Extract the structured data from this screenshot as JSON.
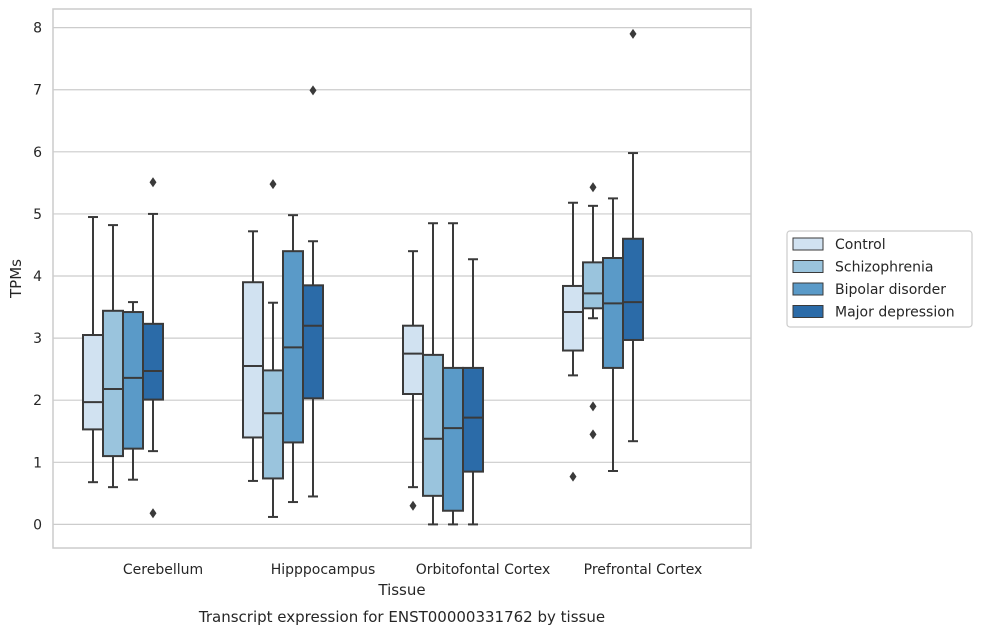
{
  "caption": "Transcript expression for ENST00000331762 by tissue",
  "chart_data": {
    "type": "box",
    "xlabel": "Tissue",
    "ylabel": "TPMs",
    "ylim": [
      -0.38,
      8.3
    ],
    "yticks": [
      0,
      1,
      2,
      3,
      4,
      5,
      6,
      7,
      8
    ],
    "grid": true,
    "legend_placement": "center-right",
    "categories": [
      "Cerebellum",
      "Hipppocampus",
      "Orbitofontal Cortex",
      "Prefrontal Cortex"
    ],
    "series": [
      {
        "name": "Control",
        "color": "#d1e2f1",
        "boxes": [
          {
            "whisker_low": 0.68,
            "q1": 1.53,
            "median": 1.97,
            "q3": 3.05,
            "whisker_high": 4.95,
            "outliers": []
          },
          {
            "whisker_low": 0.7,
            "q1": 1.4,
            "median": 2.55,
            "q3": 3.9,
            "whisker_high": 4.72,
            "outliers": []
          },
          {
            "whisker_low": 0.6,
            "q1": 2.1,
            "median": 2.75,
            "q3": 3.2,
            "whisker_high": 4.4,
            "outliers": [
              0.3
            ]
          },
          {
            "whisker_low": 2.4,
            "q1": 2.8,
            "median": 3.42,
            "q3": 3.84,
            "whisker_high": 5.18,
            "outliers": [
              0.77
            ]
          }
        ]
      },
      {
        "name": "Schizophrenia",
        "color": "#9ac4dd",
        "boxes": [
          {
            "whisker_low": 0.6,
            "q1": 1.1,
            "median": 2.18,
            "q3": 3.44,
            "whisker_high": 4.82,
            "outliers": []
          },
          {
            "whisker_low": 0.12,
            "q1": 0.74,
            "median": 1.79,
            "q3": 2.48,
            "whisker_high": 3.57,
            "outliers": [
              5.48
            ]
          },
          {
            "whisker_low": 0.0,
            "q1": 0.46,
            "median": 1.38,
            "q3": 2.73,
            "whisker_high": 4.85,
            "outliers": []
          },
          {
            "whisker_low": 3.32,
            "q1": 3.48,
            "median": 3.72,
            "q3": 4.22,
            "whisker_high": 5.13,
            "outliers": [
              5.43,
              1.9,
              1.45
            ]
          }
        ]
      },
      {
        "name": "Bipolar disorder",
        "color": "#5a9ac8",
        "boxes": [
          {
            "whisker_low": 0.72,
            "q1": 1.22,
            "median": 2.36,
            "q3": 3.42,
            "whisker_high": 3.58,
            "outliers": []
          },
          {
            "whisker_low": 0.36,
            "q1": 1.32,
            "median": 2.85,
            "q3": 4.4,
            "whisker_high": 4.98,
            "outliers": []
          },
          {
            "whisker_low": 0.0,
            "q1": 0.22,
            "median": 1.55,
            "q3": 2.52,
            "whisker_high": 4.85,
            "outliers": []
          },
          {
            "whisker_low": 0.86,
            "q1": 2.52,
            "median": 3.56,
            "q3": 4.29,
            "whisker_high": 5.25,
            "outliers": []
          }
        ]
      },
      {
        "name": "Major depression",
        "color": "#2b6ba8",
        "boxes": [
          {
            "whisker_low": 1.18,
            "q1": 2.01,
            "median": 2.47,
            "q3": 3.23,
            "whisker_high": 5.0,
            "outliers": [
              5.51,
              0.18
            ]
          },
          {
            "whisker_low": 0.45,
            "q1": 2.03,
            "median": 3.2,
            "q3": 3.85,
            "whisker_high": 4.56,
            "outliers": [
              6.99
            ]
          },
          {
            "whisker_low": 0.0,
            "q1": 0.85,
            "median": 1.72,
            "q3": 2.52,
            "whisker_high": 4.27,
            "outliers": []
          },
          {
            "whisker_low": 1.34,
            "q1": 2.97,
            "median": 3.58,
            "q3": 4.6,
            "whisker_high": 5.98,
            "outliers": [
              7.9
            ]
          }
        ]
      }
    ]
  }
}
